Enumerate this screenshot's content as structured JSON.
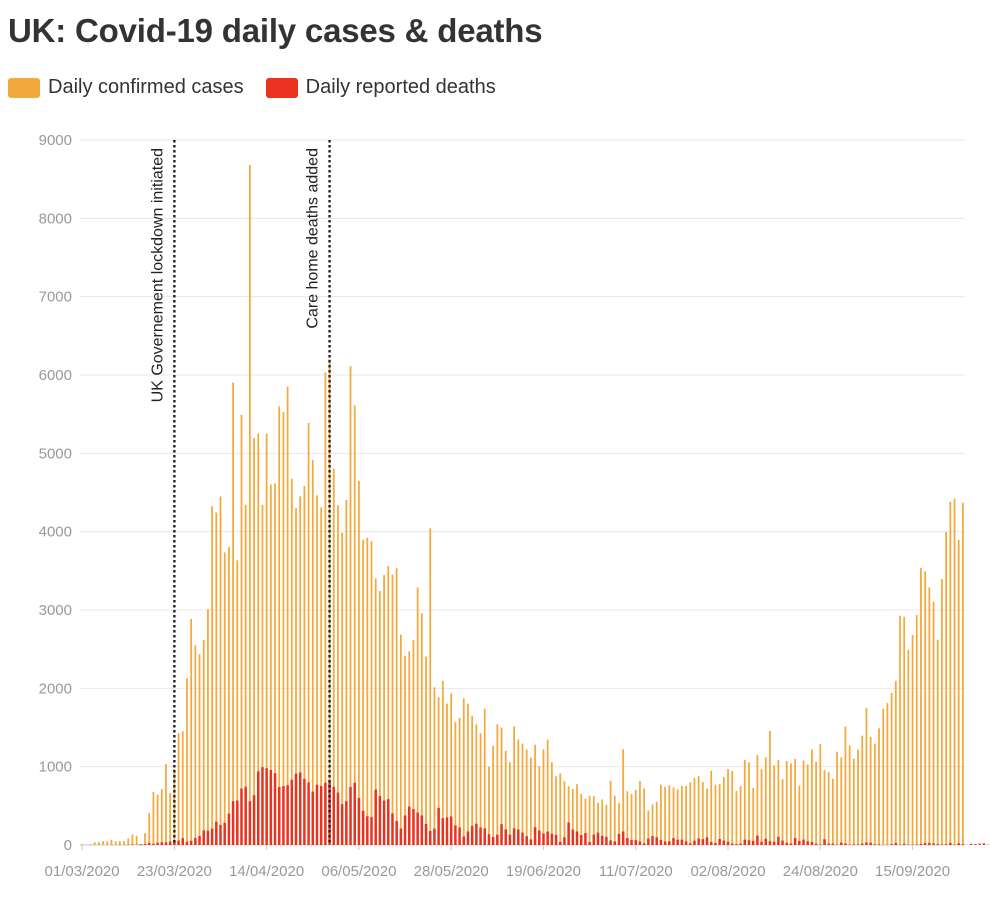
{
  "title": "UK: Covid-19 daily cases & deaths",
  "legend": [
    {
      "label": "Daily confirmed cases",
      "color": "#f5a83b"
    },
    {
      "label": "Daily reported deaths",
      "color": "#e8341f"
    }
  ],
  "chart_data": {
    "type": "bar",
    "start_date": "01/03/2020",
    "x_tick_labels": [
      "01/03/2020",
      "23/03/2020",
      "14/04/2020",
      "06/05/2020",
      "28/05/2020",
      "19/06/2020",
      "11/07/2020",
      "02/08/2020",
      "24/08/2020",
      "15/09/2020"
    ],
    "y_ticks": [
      0,
      1000,
      2000,
      3000,
      4000,
      5000,
      6000,
      7000,
      8000,
      9000
    ],
    "ylim": [
      0,
      9000
    ],
    "grid": true,
    "annotations": [
      {
        "date": "23/03/2020",
        "label": "UK Governement lockdown initiated"
      },
      {
        "date": "29/04/2020",
        "label": "Care home deaths added"
      }
    ],
    "series": [
      {
        "name": "Daily confirmed cases",
        "color": "#f5a83b",
        "values": [
          13,
          4,
          12,
          35,
          36,
          48,
          47,
          67,
          46,
          50,
          52,
          83,
          134,
          117,
          11,
          152,
          407,
          676,
          643,
          714,
          1035,
          665,
          967,
          1427,
          1452,
          2129,
          2885,
          2546,
          2433,
          2619,
          3009,
          4324,
          4244,
          4450,
          3735,
          3802,
          5903,
          3634,
          5491,
          4344,
          8681,
          5195,
          5252,
          4342,
          5252,
          4603,
          4617,
          5599,
          5525,
          5850,
          4676,
          4301,
          4451,
          4583,
          5386,
          4913,
          4463,
          4309,
          6032,
          6201,
          4806,
          4339,
          3985,
          4406,
          6111,
          5614,
          4649,
          3896,
          3923,
          3877,
          3403,
          3242,
          3446,
          3560,
          3450,
          3534,
          2684,
          2412,
          2472,
          2615,
          3287,
          2959,
          2405,
          4043,
          2013,
          1887,
          2095,
          1805,
          1936,
          1570,
          1625,
          1871,
          1805,
          1650,
          1541,
          1425,
          1741,
          1003,
          1266,
          1541,
          1500,
          1205,
          1056,
          1514,
          1346,
          1295,
          1218,
          1115,
          1279,
          1006,
          1221,
          1346,
          1056,
          878,
          915,
          813,
          751,
          714,
          776,
          650,
          593,
          630,
          624,
          539,
          581,
          512,
          820,
          630,
          537,
          1223,
          687,
          650,
          705,
          818,
          721,
          441,
          519,
          551,
          770,
          742,
          761,
          734,
          711,
          756,
          755,
          800,
          858,
          880,
          805,
          720,
          947,
          770,
          778,
          869,
          969,
          943,
          688,
          752,
          1088,
          1055,
          728,
          1150,
          968,
          1119,
          1457,
          1016,
          1085,
          840,
          1072,
          1040,
          1098,
          757,
          1080,
          1027,
          1220,
          1062,
          1288,
          955,
          929,
          845,
          1191,
          1118,
          1512,
          1272,
          1101,
          1218,
          1396,
          1746,
          1381,
          1294,
          1490,
          1741,
          1812,
          1940,
          2095,
          2927,
          2913,
          2491,
          2681,
          2935,
          3539,
          3495,
          3287,
          3105,
          2621,
          3395,
          3995,
          4383,
          4422,
          3893,
          4368
        ],
        "offset": 0
      },
      {
        "name": "Daily reported deaths",
        "color": "#e8341f",
        "values": [
          1,
          0,
          1,
          2,
          0,
          4,
          1,
          3,
          7,
          2,
          10,
          12,
          26,
          15,
          28,
          34,
          33,
          43,
          55,
          56,
          87,
          43,
          54,
          88,
          115,
          186,
          183,
          209,
          297,
          257,
          283,
          401,
          560,
          567,
          721,
          744,
          558,
          636,
          940,
          994,
          980,
          958,
          917,
          741,
          752,
          763,
          832,
          911,
          926,
          844,
          798,
          683,
          769,
          754,
          794,
          821,
          743,
          669,
          521,
          561,
          742,
          795,
          601,
          436,
          367,
          356,
          707,
          627,
          567,
          585,
          403,
          307,
          209,
          377,
          491,
          459,
          413,
          377,
          269,
          179,
          208,
          474,
          343,
          353,
          363,
          251,
          224,
          109,
          173,
          244,
          271,
          224,
          211,
          138,
          102,
          131,
          266,
          198,
          131,
          213,
          198,
          159,
          113,
          72,
          228,
          184,
          147,
          173,
          143,
          128,
          41,
          98,
          288,
          196,
          173,
          127,
          153,
          38,
          133,
          158,
          117,
          104,
          59,
          45,
          142,
          173,
          89,
          64,
          63,
          45,
          21,
          82,
          114,
          98,
          64,
          45,
          48,
          88,
          67,
          69,
          46,
          21,
          55,
          82,
          75,
          98,
          38,
          25,
          76,
          56,
          41,
          18,
          11,
          18,
          68,
          60,
          53,
          120,
          42,
          79,
          48,
          41,
          103,
          56,
          27,
          19,
          89,
          52,
          69,
          48,
          38,
          16,
          4,
          74,
          18,
          18,
          3,
          31,
          20,
          4,
          8,
          6,
          18,
          33,
          30,
          9,
          8,
          2,
          4,
          10,
          27,
          3,
          16,
          3,
          2,
          6,
          14,
          24,
          26,
          20,
          10,
          6,
          9,
          27,
          4,
          22,
          10,
          3,
          14,
          12,
          17,
          21,
          4,
          9,
          18
        ],
        "offset": 4
      }
    ]
  }
}
